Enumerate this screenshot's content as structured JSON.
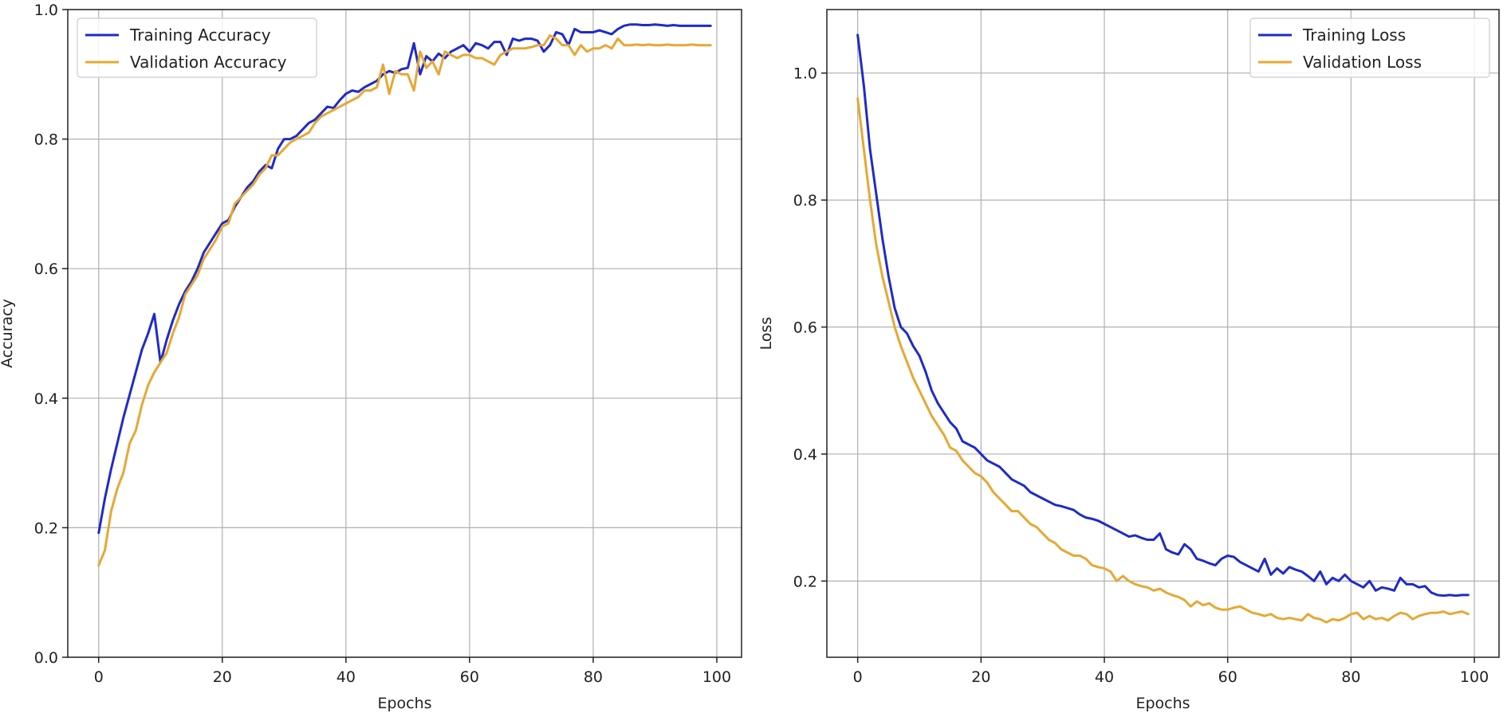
{
  "chart_data": [
    {
      "type": "line",
      "title": "",
      "xlabel": "Epochs",
      "ylabel": "Accuracy",
      "xlim": [
        -5,
        104
      ],
      "ylim": [
        0.0,
        1.0
      ],
      "xticks": [
        0,
        20,
        40,
        60,
        80,
        100
      ],
      "yticks": [
        0.0,
        0.2,
        0.4,
        0.6,
        0.8,
        1.0
      ],
      "xtick_labels": [
        "0",
        "20",
        "40",
        "60",
        "80",
        "100"
      ],
      "ytick_labels": [
        "0.0",
        "0.2",
        "0.4",
        "0.6",
        "0.8",
        "1.0"
      ],
      "grid": true,
      "legend_position": "top-left",
      "x": [
        0,
        1,
        2,
        3,
        4,
        5,
        6,
        7,
        8,
        9,
        10,
        11,
        12,
        13,
        14,
        15,
        16,
        17,
        18,
        19,
        20,
        21,
        22,
        23,
        24,
        25,
        26,
        27,
        28,
        29,
        30,
        31,
        32,
        33,
        34,
        35,
        36,
        37,
        38,
        39,
        40,
        41,
        42,
        43,
        44,
        45,
        46,
        47,
        48,
        49,
        50,
        51,
        52,
        53,
        54,
        55,
        56,
        57,
        58,
        59,
        60,
        61,
        62,
        63,
        64,
        65,
        66,
        67,
        68,
        69,
        70,
        71,
        72,
        73,
        74,
        75,
        76,
        77,
        78,
        79,
        80,
        81,
        82,
        83,
        84,
        85,
        86,
        87,
        88,
        89,
        90,
        91,
        92,
        93,
        94,
        95,
        96,
        97,
        98,
        99
      ],
      "series": [
        {
          "name": "Training Accuracy",
          "color": "#1f2bc7",
          "values": [
            0.192,
            0.245,
            0.29,
            0.33,
            0.37,
            0.405,
            0.44,
            0.475,
            0.5,
            0.53,
            0.455,
            0.49,
            0.52,
            0.545,
            0.565,
            0.58,
            0.6,
            0.625,
            0.64,
            0.655,
            0.67,
            0.675,
            0.695,
            0.71,
            0.725,
            0.735,
            0.75,
            0.76,
            0.755,
            0.785,
            0.8,
            0.8,
            0.805,
            0.815,
            0.825,
            0.83,
            0.84,
            0.85,
            0.848,
            0.86,
            0.87,
            0.875,
            0.873,
            0.88,
            0.885,
            0.89,
            0.9,
            0.905,
            0.902,
            0.908,
            0.91,
            0.948,
            0.9,
            0.928,
            0.92,
            0.932,
            0.925,
            0.935,
            0.94,
            0.945,
            0.935,
            0.948,
            0.945,
            0.94,
            0.95,
            0.95,
            0.93,
            0.955,
            0.952,
            0.955,
            0.955,
            0.952,
            0.935,
            0.945,
            0.965,
            0.962,
            0.945,
            0.97,
            0.965,
            0.965,
            0.965,
            0.968,
            0.965,
            0.962,
            0.97,
            0.975,
            0.977,
            0.977,
            0.976,
            0.976,
            0.977,
            0.976,
            0.975,
            0.976,
            0.975,
            0.975,
            0.975,
            0.975,
            0.975,
            0.975
          ]
        },
        {
          "name": "Validation Accuracy",
          "color": "#e6a833",
          "values": [
            0.142,
            0.165,
            0.225,
            0.26,
            0.285,
            0.33,
            0.35,
            0.39,
            0.42,
            0.44,
            0.455,
            0.47,
            0.5,
            0.525,
            0.56,
            0.575,
            0.59,
            0.615,
            0.63,
            0.645,
            0.665,
            0.67,
            0.7,
            0.71,
            0.72,
            0.73,
            0.745,
            0.755,
            0.775,
            0.775,
            0.785,
            0.795,
            0.8,
            0.805,
            0.81,
            0.825,
            0.835,
            0.84,
            0.845,
            0.85,
            0.855,
            0.86,
            0.865,
            0.875,
            0.875,
            0.88,
            0.915,
            0.87,
            0.905,
            0.9,
            0.9,
            0.875,
            0.935,
            0.91,
            0.92,
            0.9,
            0.935,
            0.93,
            0.925,
            0.93,
            0.93,
            0.925,
            0.925,
            0.92,
            0.915,
            0.93,
            0.935,
            0.94,
            0.94,
            0.94,
            0.942,
            0.945,
            0.945,
            0.96,
            0.955,
            0.945,
            0.945,
            0.93,
            0.945,
            0.935,
            0.94,
            0.94,
            0.945,
            0.94,
            0.955,
            0.945,
            0.945,
            0.946,
            0.945,
            0.946,
            0.945,
            0.945,
            0.946,
            0.945,
            0.945,
            0.945,
            0.946,
            0.945,
            0.945,
            0.945
          ]
        }
      ]
    },
    {
      "type": "line",
      "title": "",
      "xlabel": "Epochs",
      "ylabel": "Loss",
      "xlim": [
        -5,
        104
      ],
      "ylim": [
        0.08,
        1.1
      ],
      "xticks": [
        0,
        20,
        40,
        60,
        80,
        100
      ],
      "yticks": [
        0.2,
        0.4,
        0.6,
        0.8,
        1.0
      ],
      "xtick_labels": [
        "0",
        "20",
        "40",
        "60",
        "80",
        "100"
      ],
      "ytick_labels": [
        "0.2",
        "0.4",
        "0.6",
        "0.8",
        "1.0"
      ],
      "grid": true,
      "legend_position": "top-right",
      "x": [
        0,
        1,
        2,
        3,
        4,
        5,
        6,
        7,
        8,
        9,
        10,
        11,
        12,
        13,
        14,
        15,
        16,
        17,
        18,
        19,
        20,
        21,
        22,
        23,
        24,
        25,
        26,
        27,
        28,
        29,
        30,
        31,
        32,
        33,
        34,
        35,
        36,
        37,
        38,
        39,
        40,
        41,
        42,
        43,
        44,
        45,
        46,
        47,
        48,
        49,
        50,
        51,
        52,
        53,
        54,
        55,
        56,
        57,
        58,
        59,
        60,
        61,
        62,
        63,
        64,
        65,
        66,
        67,
        68,
        69,
        70,
        71,
        72,
        73,
        74,
        75,
        76,
        77,
        78,
        79,
        80,
        81,
        82,
        83,
        84,
        85,
        86,
        87,
        88,
        89,
        90,
        91,
        92,
        93,
        94,
        95,
        96,
        97,
        98,
        99
      ],
      "series": [
        {
          "name": "Training Loss",
          "color": "#1f2bc7",
          "values": [
            1.06,
            0.98,
            0.88,
            0.81,
            0.74,
            0.68,
            0.63,
            0.6,
            0.59,
            0.57,
            0.555,
            0.53,
            0.5,
            0.48,
            0.465,
            0.45,
            0.44,
            0.42,
            0.415,
            0.41,
            0.4,
            0.39,
            0.385,
            0.38,
            0.37,
            0.36,
            0.355,
            0.35,
            0.34,
            0.335,
            0.33,
            0.325,
            0.32,
            0.318,
            0.315,
            0.312,
            0.305,
            0.3,
            0.298,
            0.295,
            0.29,
            0.285,
            0.28,
            0.275,
            0.27,
            0.272,
            0.268,
            0.265,
            0.265,
            0.275,
            0.25,
            0.245,
            0.242,
            0.258,
            0.25,
            0.235,
            0.232,
            0.228,
            0.225,
            0.235,
            0.24,
            0.238,
            0.23,
            0.225,
            0.22,
            0.215,
            0.235,
            0.21,
            0.22,
            0.212,
            0.222,
            0.218,
            0.215,
            0.208,
            0.2,
            0.215,
            0.195,
            0.205,
            0.2,
            0.21,
            0.2,
            0.195,
            0.19,
            0.2,
            0.185,
            0.19,
            0.188,
            0.185,
            0.205,
            0.195,
            0.195,
            0.19,
            0.192,
            0.182,
            0.178,
            0.177,
            0.178,
            0.177,
            0.178,
            0.178
          ]
        },
        {
          "name": "Validation Loss",
          "color": "#e6a833",
          "values": [
            0.96,
            0.88,
            0.8,
            0.73,
            0.68,
            0.64,
            0.6,
            0.57,
            0.545,
            0.52,
            0.5,
            0.48,
            0.46,
            0.445,
            0.43,
            0.41,
            0.405,
            0.39,
            0.38,
            0.37,
            0.365,
            0.355,
            0.34,
            0.33,
            0.32,
            0.31,
            0.31,
            0.3,
            0.29,
            0.285,
            0.275,
            0.265,
            0.26,
            0.25,
            0.245,
            0.24,
            0.24,
            0.235,
            0.225,
            0.222,
            0.22,
            0.215,
            0.2,
            0.208,
            0.2,
            0.195,
            0.192,
            0.19,
            0.185,
            0.188,
            0.182,
            0.178,
            0.175,
            0.17,
            0.16,
            0.168,
            0.162,
            0.165,
            0.158,
            0.155,
            0.155,
            0.158,
            0.16,
            0.155,
            0.15,
            0.148,
            0.145,
            0.148,
            0.142,
            0.14,
            0.142,
            0.14,
            0.138,
            0.148,
            0.142,
            0.14,
            0.135,
            0.14,
            0.138,
            0.142,
            0.148,
            0.15,
            0.14,
            0.145,
            0.14,
            0.142,
            0.138,
            0.145,
            0.15,
            0.148,
            0.14,
            0.145,
            0.148,
            0.15,
            0.15,
            0.152,
            0.148,
            0.15,
            0.152,
            0.148
          ]
        }
      ]
    }
  ]
}
